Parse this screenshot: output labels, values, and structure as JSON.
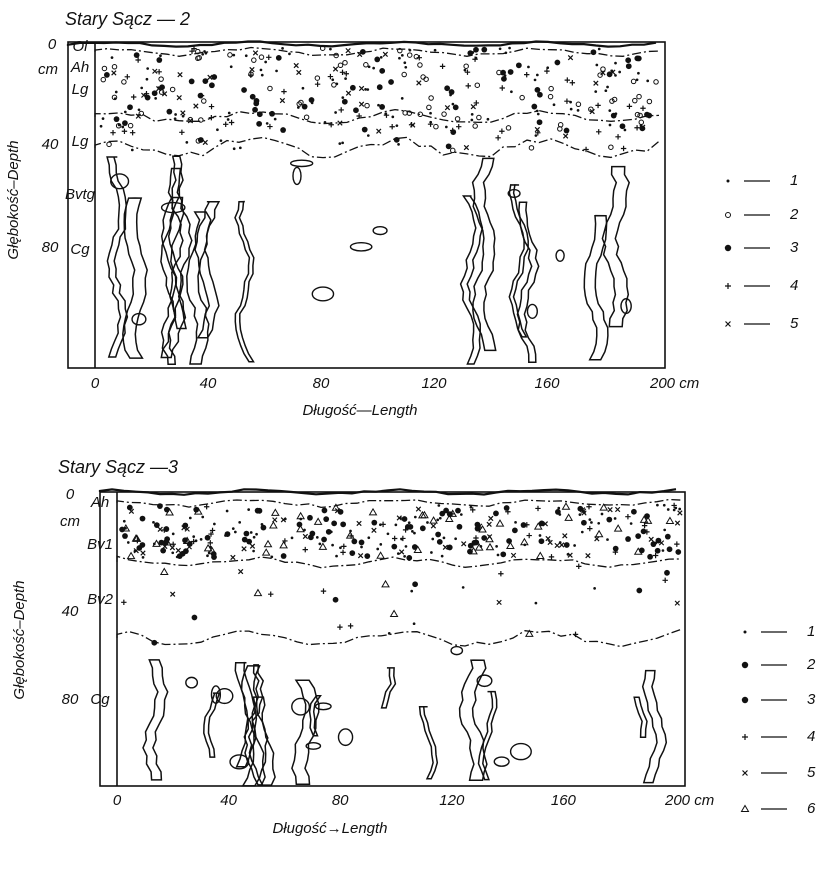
{
  "panels": [
    {
      "title": "Stary Sącz — 2",
      "y_axis": {
        "label": "Głębokość–Depth",
        "ticks": [
          "0",
          "cm",
          "40",
          "80"
        ]
      },
      "x_axis": {
        "label": "Długość—Length",
        "ticks": [
          "0",
          "40",
          "80",
          "120",
          "160",
          "200 cm"
        ]
      },
      "horizons": [
        "Ol",
        "Ah",
        "Lg",
        "Lg",
        "Bvtg",
        "Cg"
      ],
      "legend": [
        "1",
        "2",
        "3",
        "4",
        "5"
      ]
    },
    {
      "title": "Stary Sącz —3",
      "y_axis": {
        "label": "Głębokość–Depth",
        "ticks": [
          "0",
          "cm",
          "40",
          "80"
        ]
      },
      "x_axis": {
        "label": "Długość→Length",
        "ticks": [
          "0",
          "40",
          "80",
          "120",
          "160",
          "200 cm"
        ]
      },
      "horizons": [
        "Ah",
        "Bv1",
        "Bv2",
        "Cg"
      ],
      "legend": [
        "1",
        "2",
        "3",
        "4",
        "5",
        "6"
      ]
    }
  ]
}
